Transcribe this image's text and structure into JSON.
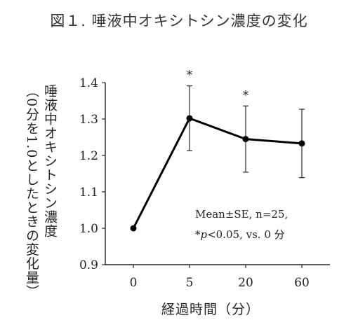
{
  "chart_data": {
    "type": "line",
    "title": "図１. 唾液中オキシトシン濃度の変化",
    "xlabel": "経過時間（分）",
    "ylabel_lines": [
      "唾液中オキシトシン濃度",
      "（0分を1.0としたときの変化量）"
    ],
    "categories": [
      "0",
      "5",
      "20",
      "60"
    ],
    "ylim": [
      0.9,
      1.4
    ],
    "yticks": [
      "0.9",
      "1.0",
      "1.1",
      "1.2",
      "1.3",
      "1.4"
    ],
    "series": [
      {
        "values": [
          1.0,
          1.302,
          1.245,
          1.233
        ],
        "errors": [
          0,
          0.089,
          0.091,
          0.094
        ]
      }
    ],
    "significance": [
      {
        "category": "5",
        "mark": "*"
      },
      {
        "category": "20",
        "mark": "*"
      }
    ],
    "note_line1": "Mean±SE, n=25,",
    "note_line2_prefix": "*",
    "note_line2_italic": "p",
    "note_line2_rest": "<0.05, vs. 0 分",
    "grid": false,
    "line_color": "#000000"
  }
}
